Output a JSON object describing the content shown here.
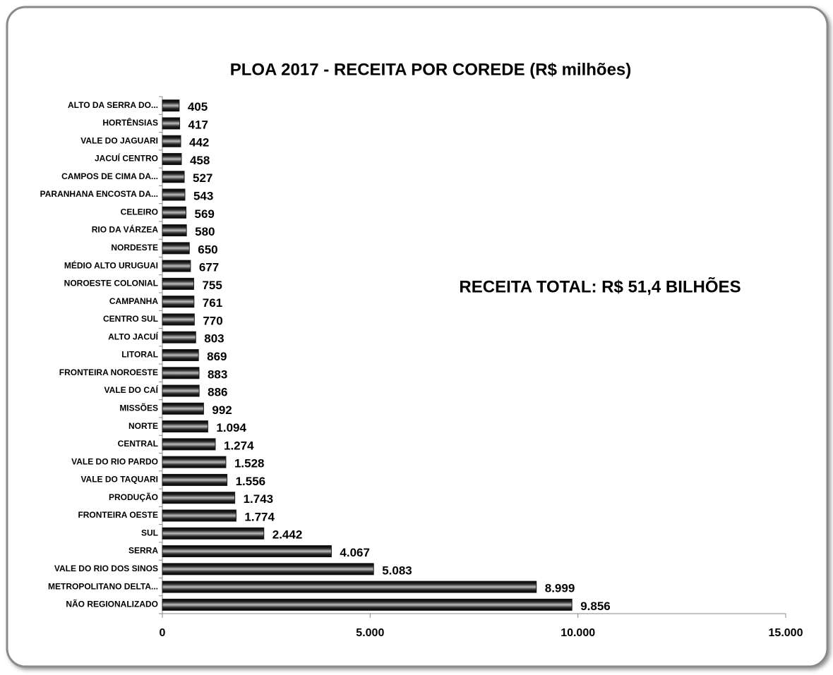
{
  "chart_data": {
    "type": "bar",
    "orientation": "horizontal",
    "title": "PLOA 2017 - RECEITA POR COREDE (R$ milhões)",
    "annotation": "RECEITA TOTAL:  R$ 51,4 BILHÕES",
    "categories": [
      "ALTO DA SERRA DO...",
      "HORTÊNSIAS",
      "VALE DO JAGUARI",
      "JACUÍ CENTRO",
      "CAMPOS DE CIMA DA...",
      "PARANHANA ENCOSTA DA...",
      "CELEIRO",
      "RIO DA VÁRZEA",
      "NORDESTE",
      "MÉDIO ALTO URUGUAI",
      "NOROESTE COLONIAL",
      "CAMPANHA",
      "CENTRO SUL",
      "ALTO JACUÍ",
      "LITORAL",
      "FRONTEIRA NOROESTE",
      "VALE DO CAÍ",
      "MISSÕES",
      "NORTE",
      "CENTRAL",
      "VALE DO RIO PARDO",
      "VALE DO TAQUARI",
      "PRODUÇÃO",
      "FRONTEIRA OESTE",
      "SUL",
      "SERRA",
      "VALE DO RIO DOS SINOS",
      "METROPOLITANO DELTA...",
      "NÃO REGIONALIZADO"
    ],
    "values": [
      405,
      417,
      442,
      458,
      527,
      543,
      569,
      580,
      650,
      677,
      755,
      761,
      770,
      803,
      869,
      883,
      886,
      992,
      1094,
      1274,
      1528,
      1556,
      1743,
      1774,
      2442,
      4067,
      5083,
      8999,
      9856
    ],
    "value_labels": [
      "405",
      "417",
      "442",
      "458",
      "527",
      "543",
      "569",
      "580",
      "650",
      "677",
      "755",
      "761",
      "770",
      "803",
      "869",
      "883",
      "886",
      "992",
      "1.094",
      "1.274",
      "1.528",
      "1.556",
      "1.743",
      "1.774",
      "2.442",
      "4.067",
      "5.083",
      "8.999",
      "9.856"
    ],
    "color": "#1a1a1a",
    "xlim": [
      0,
      15000
    ],
    "xticks": [
      0,
      {
        "value": 5000,
        "label": "5.000"
      },
      {
        "value": 10000,
        "label": "10.000"
      },
      {
        "value": 15000,
        "label": "15.000"
      }
    ]
  }
}
